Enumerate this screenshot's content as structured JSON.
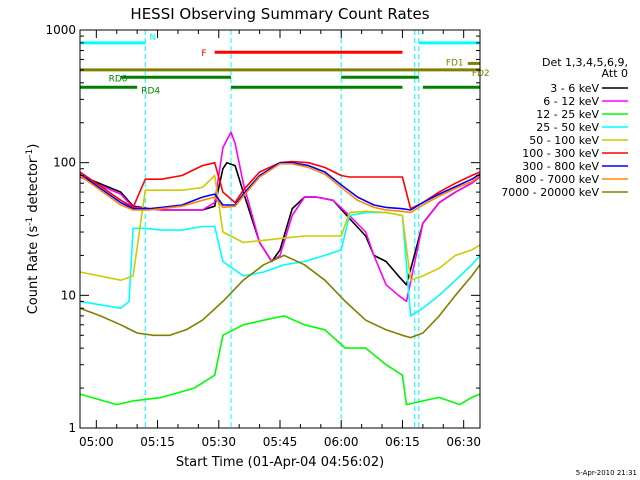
{
  "chart_data": {
    "type": "line",
    "title": "HESSI Observing Summary Count Rates",
    "xlabel": "Start Time (01-Apr-04 04:56:02)",
    "ylabel_main": "Count Rate (s",
    "ylabel_sup": "-1",
    "ylabel_mid": " detector",
    "ylabel_sup2": "-1",
    "ylabel_end": ")",
    "y_scale": "log",
    "ylim": [
      1,
      1000
    ],
    "xlim_minutes": [
      0,
      98
    ],
    "x_ticks": [
      {
        "label": "05:00",
        "min": 4
      },
      {
        "label": "05:15",
        "min": 19
      },
      {
        "label": "05:30",
        "min": 34
      },
      {
        "label": "05:45",
        "min": 49
      },
      {
        "label": "06:00",
        "min": 64
      },
      {
        "label": "06:15",
        "min": 79
      },
      {
        "label": "06:30",
        "min": 94
      }
    ],
    "y_ticks": [
      {
        "label": "1",
        "v": 1
      },
      {
        "label": "10",
        "v": 10
      },
      {
        "label": "100",
        "v": 100
      },
      {
        "label": "1000",
        "v": 1000
      }
    ],
    "legend_title": "Det 1,3,4,5,6,9,",
    "legend_subtitle": "Att 0",
    "series": [
      {
        "name": "3 - 6 keV",
        "color": "#000000",
        "x": [
          0,
          10,
          13,
          17,
          20,
          30,
          33,
          35,
          36,
          38,
          40,
          44,
          47,
          49,
          52,
          55,
          58,
          62,
          66,
          70,
          72,
          75,
          78,
          80,
          84,
          88,
          92,
          96,
          98
        ],
        "y": [
          80,
          60,
          47,
          45,
          44,
          44,
          47,
          90,
          100,
          95,
          60,
          25,
          18,
          22,
          45,
          55,
          55,
          52,
          38,
          28,
          20,
          18,
          14,
          12,
          35,
          50,
          60,
          70,
          80
        ]
      },
      {
        "name": "6 - 12 keV",
        "color": "#ff00ff",
        "x": [
          0,
          10,
          13,
          17,
          20,
          30,
          33,
          35,
          37,
          38,
          40,
          44,
          47,
          49,
          52,
          55,
          58,
          62,
          66,
          70,
          72,
          75,
          78,
          80,
          84,
          88,
          92,
          96,
          98
        ],
        "y": [
          78,
          58,
          46,
          45,
          44,
          44,
          50,
          130,
          170,
          140,
          70,
          25,
          18,
          20,
          40,
          55,
          55,
          52,
          40,
          30,
          20,
          12,
          10,
          9,
          35,
          50,
          60,
          70,
          78
        ]
      },
      {
        "name": "12 - 25 keV",
        "color": "#00ff00",
        "x": [
          0,
          9,
          13,
          20,
          28,
          33,
          35,
          40,
          45,
          50,
          55,
          60,
          65,
          70,
          75,
          79,
          80,
          84,
          88,
          93,
          96,
          98
        ],
        "y": [
          1.8,
          1.5,
          1.6,
          1.7,
          2,
          2.5,
          5,
          6,
          6.5,
          7,
          6,
          5.5,
          4,
          4,
          3,
          2.5,
          1.5,
          1.6,
          1.7,
          1.5,
          1.7,
          1.8
        ]
      },
      {
        "name": "25 - 50 keV",
        "color": "#00ffff",
        "x": [
          0,
          10,
          12,
          13,
          16,
          20,
          25,
          30,
          33,
          35,
          40,
          45,
          50,
          55,
          60,
          64,
          66,
          70,
          75,
          79,
          81,
          84,
          88,
          92,
          96,
          98
        ],
        "y": [
          9,
          8,
          9,
          32,
          32,
          31,
          31,
          33,
          33,
          18,
          14,
          15,
          17,
          18,
          20,
          22,
          40,
          42,
          42,
          40,
          7,
          8,
          10,
          13,
          17,
          20
        ]
      },
      {
        "name": "50 - 100 keV",
        "color": "#cccc00",
        "x": [
          0,
          10,
          13,
          16,
          20,
          25,
          30,
          33,
          35,
          40,
          45,
          50,
          55,
          60,
          64,
          66,
          70,
          75,
          79,
          81,
          84,
          88,
          92,
          96,
          98
        ],
        "y": [
          15,
          13,
          14,
          62,
          62,
          62,
          65,
          80,
          30,
          25,
          26,
          27,
          28,
          28,
          28,
          42,
          43,
          42,
          40,
          13,
          14,
          16,
          20,
          22,
          24
        ]
      },
      {
        "name": "100 - 300 keV",
        "color": "#ff0000",
        "x": [
          0,
          10,
          13,
          16,
          20,
          25,
          30,
          33,
          35,
          38,
          40,
          44,
          49,
          52,
          56,
          60,
          64,
          66,
          70,
          75,
          79,
          81,
          84,
          88,
          92,
          96,
          98
        ],
        "y": [
          85,
          52,
          46,
          75,
          75,
          80,
          95,
          100,
          60,
          50,
          62,
          85,
          100,
          102,
          100,
          92,
          80,
          78,
          78,
          78,
          78,
          45,
          50,
          60,
          70,
          80,
          85
        ]
      },
      {
        "name": "300 - 800 keV",
        "color": "#0000ff",
        "x": [
          0,
          10,
          13,
          17,
          20,
          25,
          30,
          33,
          35,
          38,
          40,
          44,
          49,
          52,
          56,
          60,
          64,
          68,
          72,
          75,
          79,
          81,
          84,
          88,
          92,
          96,
          98
        ],
        "y": [
          82,
          50,
          45,
          45,
          46,
          48,
          55,
          58,
          48,
          48,
          58,
          80,
          100,
          100,
          95,
          85,
          68,
          55,
          48,
          46,
          45,
          44,
          50,
          58,
          66,
          75,
          82
        ]
      },
      {
        "name": "800 - 7000 keV",
        "color": "#ff8800",
        "x": [
          0,
          10,
          13,
          17,
          20,
          25,
          30,
          33,
          35,
          38,
          40,
          44,
          49,
          52,
          56,
          60,
          64,
          68,
          72,
          75,
          79,
          81,
          84,
          88,
          92,
          96,
          98
        ],
        "y": [
          80,
          48,
          44,
          44,
          45,
          47,
          52,
          55,
          46,
          47,
          56,
          78,
          98,
          98,
          92,
          82,
          65,
          52,
          46,
          44,
          43,
          42,
          48,
          56,
          64,
          72,
          80
        ]
      },
      {
        "name": "7000 - 20000 keV",
        "color": "#808000",
        "x": [
          0,
          5,
          10,
          14,
          18,
          22,
          26,
          30,
          35,
          40,
          45,
          50,
          55,
          60,
          65,
          70,
          75,
          79,
          81,
          84,
          88,
          92,
          96,
          98
        ],
        "y": [
          8,
          7,
          6,
          5.2,
          5,
          5,
          5.5,
          6.5,
          9,
          13,
          17,
          20,
          17,
          13,
          9,
          6.5,
          5.5,
          5,
          4.8,
          5.2,
          7,
          10,
          14,
          17
        ]
      }
    ],
    "flags": [
      {
        "label": "N",
        "color": "#00ffff",
        "segments": [
          [
            0,
            16
          ],
          [
            83,
            98
          ]
        ],
        "level": 800
      },
      {
        "label": "F",
        "color": "#ff0000",
        "segments": [
          [
            33,
            79
          ]
        ],
        "level": 680
      },
      {
        "label": "FD1",
        "color": "#808000",
        "segments": [
          [
            95,
            98
          ]
        ],
        "level": 560
      },
      {
        "label": "FD2",
        "color": "#808000",
        "segments": [
          [
            0,
            98
          ]
        ],
        "level": 500
      },
      {
        "label": "RD0",
        "color": "#008000",
        "segments": [
          [
            10,
            37
          ],
          [
            64,
            83
          ]
        ],
        "level": 440
      },
      {
        "label": "RD4",
        "color": "#008000",
        "segments": [
          [
            0,
            14
          ],
          [
            37,
            79
          ],
          [
            84,
            98
          ]
        ],
        "level": 370
      }
    ],
    "vlines": [
      0,
      16,
      37,
      64,
      82,
      83,
      98
    ],
    "timestamp": "5-Apr-2010 21:31"
  }
}
